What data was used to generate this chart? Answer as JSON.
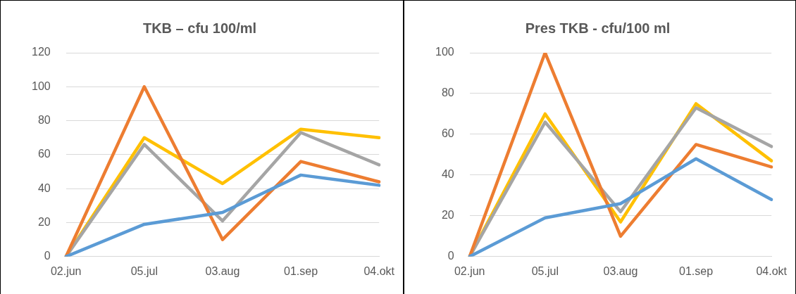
{
  "chart_data": [
    {
      "type": "line",
      "title": "TKB – cfu 100/ml",
      "categories": [
        "02.jun",
        "05.jul",
        "03.aug",
        "01.sep",
        "04.okt"
      ],
      "series": [
        {
          "color": "#5b9bd5",
          "values": [
            0,
            19,
            26,
            48,
            42
          ]
        },
        {
          "color": "#ed7d31",
          "values": [
            0,
            100,
            10,
            56,
            44
          ]
        },
        {
          "color": "#a5a5a5",
          "values": [
            0,
            66,
            21,
            73,
            54
          ]
        },
        {
          "color": "#ffc000",
          "values": [
            0,
            70,
            43,
            75,
            70
          ]
        }
      ],
      "ylim": [
        0,
        120
      ],
      "yticks": [
        0,
        20,
        40,
        60,
        80,
        100,
        120
      ],
      "grid": "y",
      "legend": false,
      "marker": "none"
    },
    {
      "type": "line",
      "title": "Pres TKB - cfu/100 ml",
      "categories": [
        "02.jun",
        "05.jul",
        "03.aug",
        "01.sep",
        "04.okt"
      ],
      "series": [
        {
          "color": "#5b9bd5",
          "values": [
            0,
            19,
            26,
            48,
            28
          ]
        },
        {
          "color": "#ed7d31",
          "values": [
            0,
            100,
            10,
            55,
            44
          ]
        },
        {
          "color": "#a5a5a5",
          "values": [
            0,
            66,
            22,
            73,
            54
          ]
        },
        {
          "color": "#ffc000",
          "values": [
            0,
            70,
            17,
            75,
            47
          ]
        }
      ],
      "ylim": [
        0,
        100
      ],
      "yticks": [
        0,
        20,
        40,
        60,
        80,
        100
      ],
      "grid": "y",
      "legend": false,
      "marker": "none"
    }
  ]
}
